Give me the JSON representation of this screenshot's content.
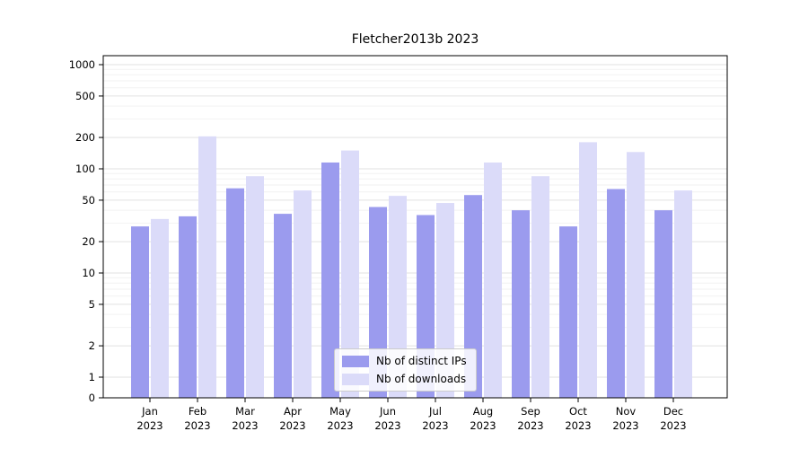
{
  "chart_data": {
    "type": "bar",
    "title": "Fletcher2013b 2023",
    "categories": [
      "Jan",
      "Feb",
      "Mar",
      "Apr",
      "May",
      "Jun",
      "Jul",
      "Aug",
      "Sep",
      "Oct",
      "Nov",
      "Dec"
    ],
    "year_label": "2023",
    "series": [
      {
        "name": "Nb of distinct IPs",
        "color": "#9b9bee",
        "values": [
          28,
          35,
          65,
          37,
          115,
          43,
          36,
          56,
          40,
          28,
          64,
          40
        ]
      },
      {
        "name": "Nb of downloads",
        "color": "#dbdbf9",
        "values": [
          33,
          205,
          85,
          62,
          150,
          55,
          47,
          115,
          85,
          180,
          145,
          62
        ]
      }
    ],
    "xlabel": "",
    "ylabel": "",
    "yscale": "symlog",
    "yticks": [
      0,
      1,
      2,
      5,
      10,
      20,
      50,
      100,
      200,
      500,
      1000
    ],
    "ylim": [
      0,
      1200
    ],
    "grid": true,
    "legend_position": "lower center"
  }
}
